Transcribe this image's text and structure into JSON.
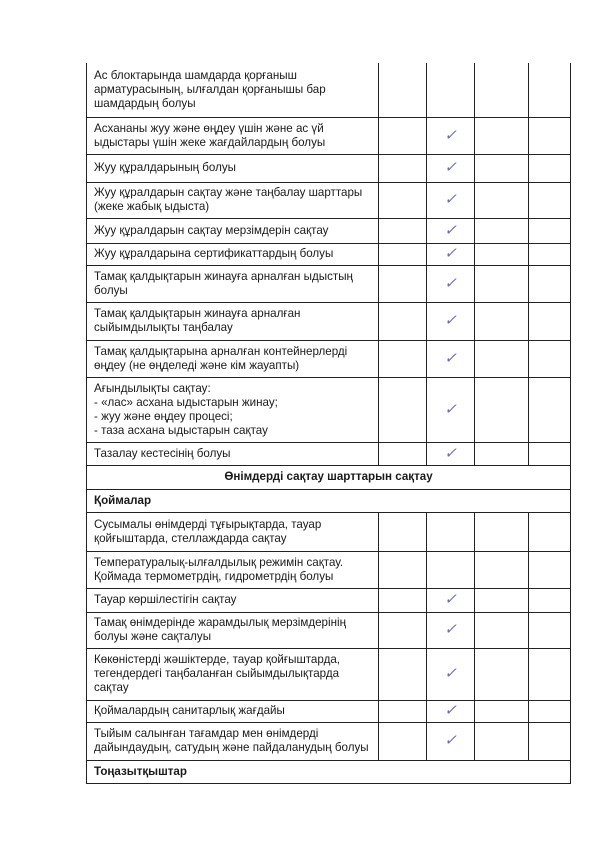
{
  "check_color": "#6a6ab8",
  "check_symbol": "✓",
  "rows": [
    {
      "type": "item",
      "text": "Ас блоктарында шамдарда қорғаныш\nарматурасының, ылғалдан қорғанышы бар\nшамдардың болуы",
      "checked": false
    },
    {
      "type": "item",
      "text": "Асхананы жуу және өңдеу үшін және ас үй\nыдыстары үшін жеке жағдайлардың болуы",
      "checked": true
    },
    {
      "type": "item",
      "text": "Жуу құралдарының болуы",
      "checked": true
    },
    {
      "type": "item",
      "text": "Жуу құралдарын сақтау және таңбалау шарттары\n(жеке жабық ыдыста)",
      "checked": true
    },
    {
      "type": "item",
      "text": "Жуу құралдарын сақтау мерзімдерін сақтау",
      "checked": true
    },
    {
      "type": "item",
      "text": "Жуу құралдарына сертификаттардың болуы",
      "checked": true
    },
    {
      "type": "item",
      "text": "Тамақ қалдықтарын жинауға арналған ыдыстың\nболуы",
      "checked": true
    },
    {
      "type": "item",
      "text": "Тамақ қалдықтарын жинауға арналған\nсыйымдылықты таңбалау",
      "checked": true
    },
    {
      "type": "item",
      "text": "Тамақ қалдықтарына арналған контейнерлерді\nөңдеу (не өңделеді және кім жауапты)",
      "checked": true
    },
    {
      "type": "item",
      "text": "Ағындылықты сақтау:\n- «лас» асхана ыдыстарын жинау;\n- жуу және өңдеу процесі;\n- таза асхана ыдыстарын сақтау",
      "checked": true
    },
    {
      "type": "item",
      "text": "Тазалау кестесінің болуы",
      "checked": true
    },
    {
      "type": "section",
      "text": "Өнімдерді сақтау шарттарын сақтау"
    },
    {
      "type": "sub",
      "text": "Қоймалар"
    },
    {
      "type": "item",
      "text": "Сусымалы өнімдерді тұғырықтарда, тауар\nқойғыштарда, стеллаждарда сақтау",
      "checked": false
    },
    {
      "type": "item",
      "text": "Температуралық-ылғалдылық режимін сақтау.\nҚоймада термометрдің, гидрометрдің болуы",
      "checked": false
    },
    {
      "type": "item",
      "text": "Тауар көршілестігін сақтау",
      "checked": true
    },
    {
      "type": "item",
      "text": "Тамақ өнімдерінде жарамдылық мерзімдерінің\nболуы және сақталуы",
      "checked": true
    },
    {
      "type": "item",
      "text": "Көкөністерді жәшіктерде, тауар қойғыштарда,\nтегендердегі таңбаланған сыйымдылықтарда\nсақтау",
      "checked": true
    },
    {
      "type": "item",
      "text": "Қоймалардың санитарлық жағдайы",
      "checked": true
    },
    {
      "type": "item",
      "text": "Тыйым салынған тағамдар мен өнімдерді\nдайындаудың, сатудың және пайдаланудың болуы",
      "checked": true
    },
    {
      "type": "sub",
      "text": "Тоңазытқыштар"
    }
  ]
}
